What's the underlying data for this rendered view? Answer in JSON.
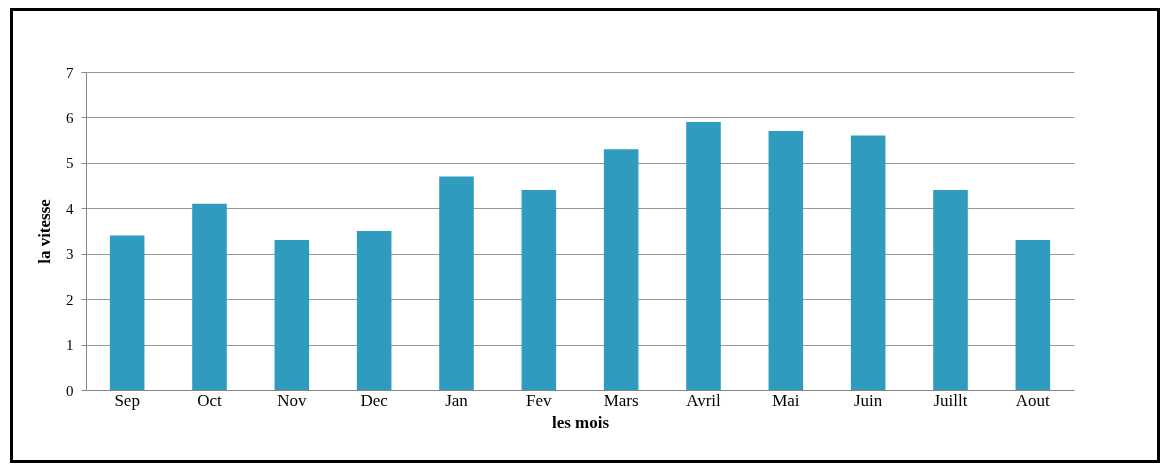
{
  "chart_data": {
    "type": "bar",
    "xlabel": "les mois",
    "ylabel": "la vitesse",
    "categories": [
      "Sep",
      "Oct",
      "Nov",
      "Dec",
      "Jan",
      "Fev",
      "Mars",
      "Avril",
      "Mai",
      "Juin",
      "Juillt",
      "Aout"
    ],
    "values": [
      3.4,
      4.1,
      3.3,
      3.5,
      4.7,
      4.4,
      5.3,
      5.9,
      5.7,
      5.6,
      4.4,
      3.3
    ],
    "color": "#2e9bbf",
    "ylim": [
      0,
      7
    ],
    "yticks": [
      0,
      1,
      2,
      3,
      4,
      5,
      6,
      7
    ],
    "grid": "y"
  }
}
